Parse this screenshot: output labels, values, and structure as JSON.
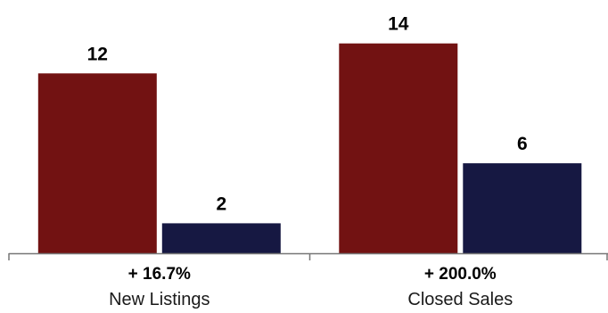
{
  "chart_data": {
    "type": "bar",
    "categories": [
      "New Listings",
      "Closed Sales"
    ],
    "changes": [
      "+ 16.7%",
      "+ 200.0%"
    ],
    "series": [
      {
        "values": [
          12,
          14
        ],
        "color": "#721212"
      },
      {
        "values": [
          2,
          6
        ],
        "color": "#161842"
      }
    ],
    "ylim": [
      0,
      16
    ],
    "grid": false
  },
  "colors": {
    "axis": "#777777"
  }
}
